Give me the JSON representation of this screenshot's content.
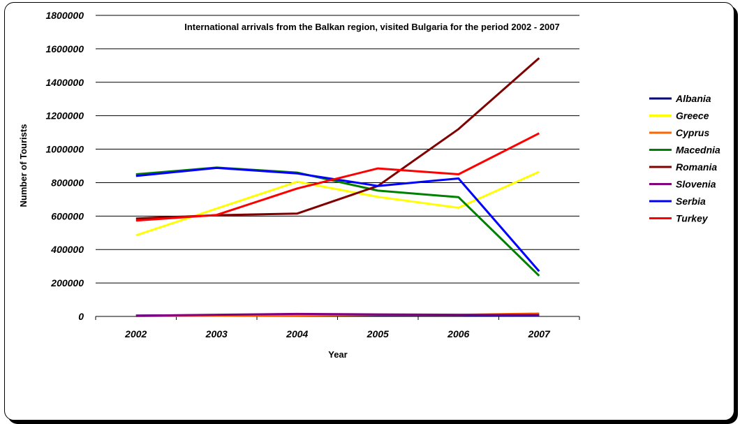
{
  "chart_data": {
    "type": "line",
    "title": "International arrivals from the Balkan region, visited Bulgaria for the period 2002 - 2007",
    "xlabel": "Year",
    "ylabel": "Number of Tourists",
    "categories": [
      "2002",
      "2003",
      "2004",
      "2005",
      "2006",
      "2007"
    ],
    "ylim": [
      0,
      1800000
    ],
    "y_ticks": [
      "0",
      "200000",
      "400000",
      "600000",
      "800000",
      "1000000",
      "1200000",
      "1400000",
      "1600000",
      "1800000"
    ],
    "grid": "horizontal",
    "legend_position": "right",
    "series": [
      {
        "name": "Albania",
        "color": "#000080",
        "values": [
          5000,
          7000,
          9000,
          8000,
          7000,
          6000
        ]
      },
      {
        "name": "Greece",
        "color": "#FFFF00",
        "values": [
          485000,
          645000,
          805000,
          715000,
          650000,
          865000
        ]
      },
      {
        "name": "Cyprus",
        "color": "#FF6600",
        "values": [
          2000,
          4000,
          6000,
          10000,
          9000,
          17000
        ]
      },
      {
        "name": "Macednia",
        "color": "#008000",
        "values": [
          850000,
          890000,
          860000,
          752000,
          713000,
          243000
        ]
      },
      {
        "name": "Romania",
        "color": "#800000",
        "values": [
          585000,
          605000,
          615000,
          780000,
          1120000,
          1545000
        ]
      },
      {
        "name": "Slovenia",
        "color": "#800080",
        "values": [
          4000,
          10000,
          15000,
          12000,
          10000,
          9000
        ]
      },
      {
        "name": "Serbia",
        "color": "#0000FF",
        "values": [
          840000,
          888000,
          855000,
          780000,
          825000,
          270000
        ]
      },
      {
        "name": "Turkey",
        "color": "#FF0000",
        "values": [
          573000,
          607000,
          765000,
          885000,
          850000,
          1095000
        ]
      }
    ]
  }
}
